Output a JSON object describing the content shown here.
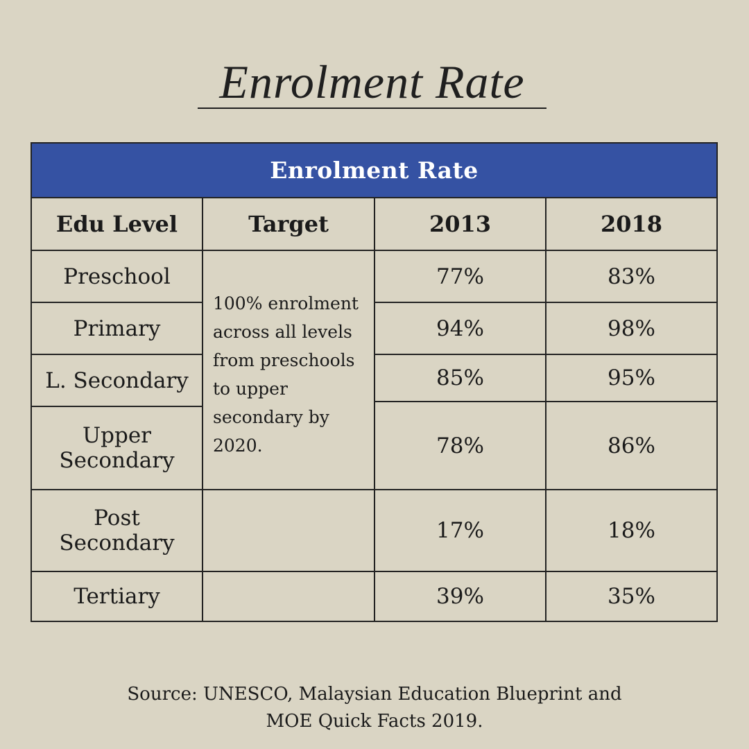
{
  "page": {
    "title": "Enrolment Rate",
    "background_color": "#dad5c4",
    "accent_color": "#3552a3"
  },
  "chart_data": {
    "type": "table",
    "title": "Enrolment Rate",
    "columns": [
      "Edu Level",
      "Target",
      "2013",
      "2018"
    ],
    "target_note": "100% enrolment across all levels from preschools to upper secondary by 2020.",
    "target_lines": [
      "100% enrolment",
      "across all levels",
      "from preschools",
      "to upper",
      "secondary by",
      "2020."
    ],
    "rows": [
      {
        "level": "Preschool",
        "y2013": "77%",
        "y2018": "83%"
      },
      {
        "level": "Primary",
        "y2013": "94%",
        "y2018": "98%"
      },
      {
        "level": "L. Secondary",
        "y2013": "85%",
        "y2018": "95%"
      },
      {
        "level": "Upper Secondary",
        "y2013": "78%",
        "y2018": "86%"
      },
      {
        "level": "Post Secondary",
        "y2013": "17%",
        "y2018": "18%"
      },
      {
        "level": "Tertiary",
        "y2013": "39%",
        "y2018": "35%"
      }
    ]
  },
  "source": {
    "line1": "Source: UNESCO, Malaysian Education Blueprint and",
    "line2": "MOE Quick Facts 2019."
  }
}
